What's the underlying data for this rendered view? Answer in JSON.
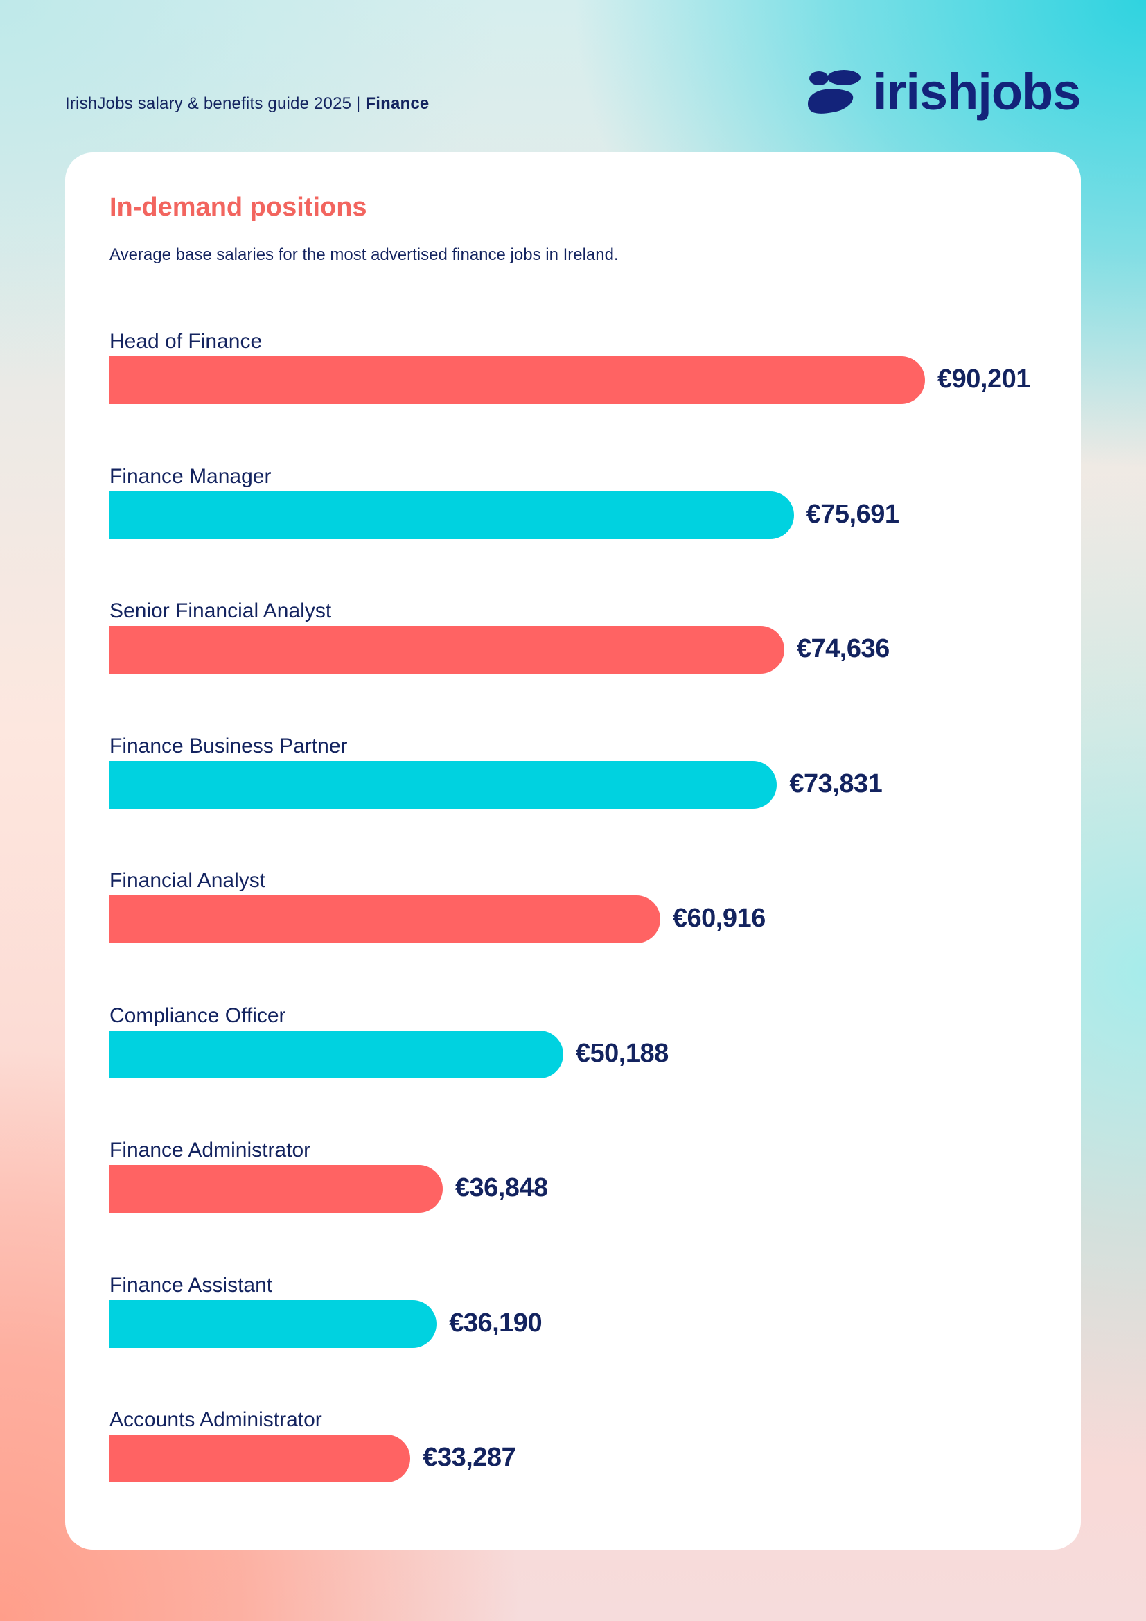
{
  "header": {
    "guide": "IrishJobs salary & benefits guide 2025 |",
    "section": "Finance"
  },
  "logo": {
    "text": "irishjobs",
    "icon": "irishjobs-logo-icon",
    "color": "#13237a"
  },
  "colors": {
    "coral": "#ff6363",
    "teal": "#00d2e0",
    "title": "#f2655f",
    "text": "#13235f"
  },
  "chart_data": {
    "type": "bar",
    "orientation": "horizontal",
    "title": "In-demand positions",
    "subtitle": "Average base salaries for the most advertised finance jobs in Ireland.",
    "categories": [
      "Head of Finance",
      "Finance Manager",
      "Senior Financial Analyst",
      "Finance Business Partner",
      "Financial Analyst",
      "Compliance Officer",
      "Finance Administrator",
      "Finance Assistant",
      "Accounts Administrator"
    ],
    "values": [
      90201,
      75691,
      74636,
      73831,
      60916,
      50188,
      36848,
      36190,
      33287
    ],
    "value_labels": [
      "€90,201",
      "€75,691",
      "€74,636",
      "€73,831",
      "€60,916",
      "€50,188",
      "€36,848",
      "€36,190",
      "€33,287"
    ],
    "bar_colors": [
      "coral",
      "teal",
      "coral",
      "teal",
      "coral",
      "teal",
      "coral",
      "teal",
      "coral"
    ],
    "xlim": [
      0,
      90201
    ],
    "grid": false,
    "legend": "none"
  }
}
